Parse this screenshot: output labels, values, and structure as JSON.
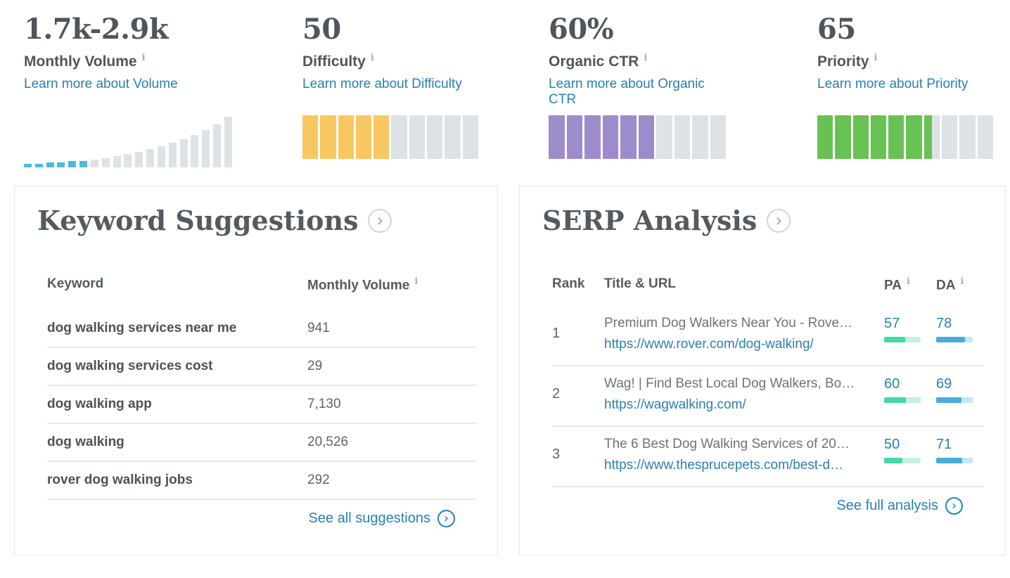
{
  "colors": {
    "link": "#2581B4",
    "heading_text": "#4E565C",
    "body_text": "#5C646A",
    "hist_blue": "#4BB9E2",
    "hist_gray": "#DCE3E7",
    "segment_gray": "#DCE2E6",
    "difficulty_fill": "#F9C762",
    "ctr_fill": "#9D8CCC",
    "priority_fill": "#68C253",
    "pa_fill": "#43D8A5",
    "pa_track": "#C3F0E1",
    "da_fill": "#47AEDC",
    "da_track": "#C2E8F5"
  },
  "metrics": [
    {
      "value": "1.7k-2.9k",
      "label": "Monthly Volume",
      "info": "i",
      "link": "Learn more about Volume",
      "trend": {
        "type": "bar",
        "heights": [
          5,
          5,
          7,
          7,
          9,
          9,
          11,
          13,
          16,
          19,
          22,
          26,
          30,
          35,
          40,
          46,
          53,
          61,
          72
        ],
        "highlighted_count": 6
      }
    },
    {
      "value": "50",
      "label": "Difficulty",
      "info": "i",
      "link": "Learn more about Difficulty",
      "segments": {
        "total": 10,
        "filled": 5,
        "fill_key": "difficulty_fill"
      }
    },
    {
      "value": "60%",
      "label": "Organic CTR",
      "info": "i",
      "link": "Learn more about Organic CTR",
      "segments": {
        "total": 10,
        "filled": 6,
        "fill_key": "ctr_fill"
      }
    },
    {
      "value": "65",
      "label": "Priority",
      "info": "i",
      "link": "Learn more about Priority",
      "segments": {
        "total": 10,
        "filled": 6.5,
        "fill_key": "priority_fill"
      }
    }
  ],
  "keyword_suggestions": {
    "title": "Keyword Suggestions",
    "columns": {
      "keyword": "Keyword",
      "volume": "Monthly Volume",
      "volume_info": "i"
    },
    "rows": [
      {
        "keyword": "dog walking services near me",
        "volume": "941"
      },
      {
        "keyword": "dog walking services cost",
        "volume": "29"
      },
      {
        "keyword": "dog walking app",
        "volume": "7,130"
      },
      {
        "keyword": "dog walking",
        "volume": "20,526"
      },
      {
        "keyword": "rover dog walking jobs",
        "volume": "292"
      }
    ],
    "footer_link": "See all suggestions"
  },
  "serp_analysis": {
    "title": "SERP Analysis",
    "columns": {
      "rank": "Rank",
      "title_url": "Title & URL",
      "pa": "PA",
      "pa_info": "i",
      "da": "DA",
      "da_info": "i"
    },
    "rows": [
      {
        "rank": "1",
        "title": "Premium Dog Walkers Near You - Rove…",
        "url": "https://www.rover.com/dog-walking/",
        "pa": 57,
        "da": 78
      },
      {
        "rank": "2",
        "title": "Wag! | Find Best Local Dog Walkers, Bo…",
        "url": "https://wagwalking.com/",
        "pa": 60,
        "da": 69
      },
      {
        "rank": "3",
        "title": "The 6 Best Dog Walking Services of 20…",
        "url": "https://www.thesprucepets.com/best-d…",
        "pa": 50,
        "da": 71
      }
    ],
    "footer_link": "See full analysis"
  }
}
